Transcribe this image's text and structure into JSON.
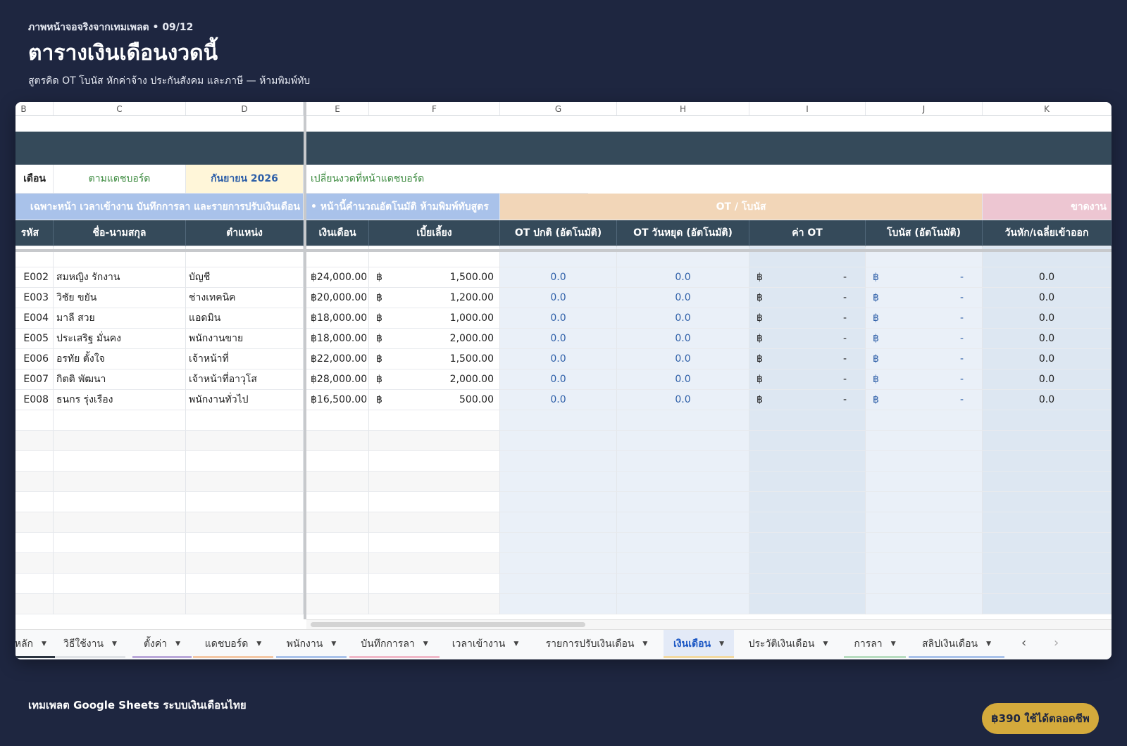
{
  "header": {
    "kicker": "ภาพหน้าจอจริงจากเทมเพลต • 09/12",
    "title": "ตารางเงินเดือนงวดนี้",
    "subtitle": "สูตรคิด OT โบนัส หักค่าจ้าง ประกันสังคม และภาษี — ห้ามพิมพ์ทับ"
  },
  "sheet": {
    "col_letters": [
      "B",
      "C",
      "D",
      "E",
      "F",
      "G",
      "H",
      "I",
      "J",
      "K"
    ],
    "period_label": "เดือน",
    "period_mode": "ตามแดชบอร์ด",
    "period_value": "กันยายน 2026",
    "period_note": "เปลี่ยนงวดที่หน้าแดชบอร์ด",
    "banner_left": "เฉพาะหน้า เวลาเข้างาน บันทึกการลา และรายการปรับเงินเดือน",
    "banner_mid": "• หน้านี้คำนวณอัตโนมัติ ห้ามพิมพ์ทับสูตร",
    "banner_ot": "OT / โบนัส",
    "banner_deduct": "ขาดงาน",
    "headers": [
      "รหัส",
      "ชื่อ-นามสกุล",
      "ตำแหน่ง",
      "เงินเดือน",
      "เบี้ยเลี้ยง",
      "OT ปกติ (อัตโนมัติ)",
      "OT วันหยุด (อัตโนมัติ)",
      "ค่า OT",
      "โบนัส (อัตโนมัติ)",
      "วันหัก/เฉลี่ยเข้าออก"
    ],
    "currency": "฿",
    "dash": "-",
    "rows": [
      {
        "id": "E002",
        "name": "สมหญิง รักงาน",
        "position": "บัญชี",
        "salary": "24,000.00",
        "allowance": "1,500.00",
        "ot_normal": "0.0",
        "ot_holiday": "0.0",
        "deduct": "0.0"
      },
      {
        "id": "E003",
        "name": "วิชัย ขยัน",
        "position": "ช่างเทคนิค",
        "salary": "20,000.00",
        "allowance": "1,200.00",
        "ot_normal": "0.0",
        "ot_holiday": "0.0",
        "deduct": "0.0"
      },
      {
        "id": "E004",
        "name": "มาลี สวย",
        "position": "แอดมิน",
        "salary": "18,000.00",
        "allowance": "1,000.00",
        "ot_normal": "0.0",
        "ot_holiday": "0.0",
        "deduct": "0.0"
      },
      {
        "id": "E005",
        "name": "ประเสริฐ มั่นคง",
        "position": "พนักงานขาย",
        "salary": "18,000.00",
        "allowance": "2,000.00",
        "ot_normal": "0.0",
        "ot_holiday": "0.0",
        "deduct": "0.0"
      },
      {
        "id": "E006",
        "name": "อรทัย ตั้งใจ",
        "position": "เจ้าหน้าที่",
        "salary": "22,000.00",
        "allowance": "1,500.00",
        "ot_normal": "0.0",
        "ot_holiday": "0.0",
        "deduct": "0.0"
      },
      {
        "id": "E007",
        "name": "กิตติ พัฒนา",
        "position": "เจ้าหน้าที่อาวุโส",
        "salary": "28,000.00",
        "allowance": "2,000.00",
        "ot_normal": "0.0",
        "ot_holiday": "0.0",
        "deduct": "0.0"
      },
      {
        "id": "E008",
        "name": "ธนกร รุ่งเรือง",
        "position": "พนักงานทั่วไป",
        "salary": "16,500.00",
        "allowance": "500.00",
        "ot_normal": "0.0",
        "ot_holiday": "0.0",
        "deduct": "0.0"
      }
    ]
  },
  "tabs": [
    {
      "label": "หน้าหลัก",
      "color": "#2b3440"
    },
    {
      "label": "วิธีใช้งาน",
      "color": "#dfe2e6"
    },
    {
      "label": "ตั้งค่า",
      "color": "#b9a7d9"
    },
    {
      "label": "แดชบอร์ด",
      "color": "#f3c7a4"
    },
    {
      "label": "พนักงาน",
      "color": "#a9c2ea"
    },
    {
      "label": "บันทึกการลา",
      "color": "#f0b8c8"
    },
    {
      "label": "เวลาเข้างาน",
      "color": "#f8f9fa"
    },
    {
      "label": "รายการปรับเงินเดือน",
      "color": "#f8f9fa"
    },
    {
      "label": "เงินเดือน",
      "color": "#f2d9a0"
    },
    {
      "label": "ประวัติเงินเดือน",
      "color": "#f8f9fa"
    },
    {
      "label": "การลา",
      "color": "#b7dcbf"
    },
    {
      "label": "สลิปเงินเดือน",
      "color": "#a9c2ea"
    }
  ],
  "active_tab": "เงินเดือน",
  "nav": {
    "prev": "‹",
    "next": "›"
  },
  "footer": {
    "text": "เทมเพลต Google Sheets ระบบเงินเดือนไทย",
    "price": "฿390 ใช้ได้ตลอดชีพ"
  }
}
